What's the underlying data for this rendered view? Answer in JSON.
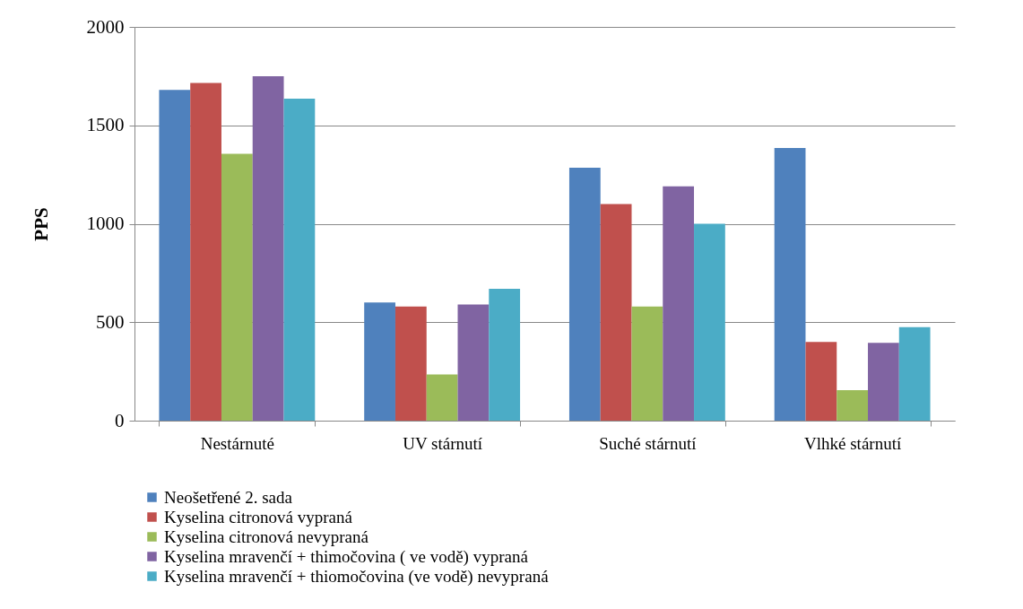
{
  "chart_data": {
    "type": "bar",
    "ylabel": "PPS",
    "categories": [
      "Nestárnuté",
      "UV stárnutí",
      "Suché stárnutí",
      "Vlhké stárnutí"
    ],
    "series": [
      {
        "name": "Neošetřené 2. sada",
        "color": "#4f81bd",
        "values": [
          1680,
          600,
          1285,
          1385
        ]
      },
      {
        "name": "Kyselina citronová vypraná",
        "color": "#c0504d",
        "values": [
          1715,
          580,
          1100,
          400
        ]
      },
      {
        "name": "Kyselina citronová nevypraná",
        "color": "#9bbb59",
        "values": [
          1355,
          235,
          580,
          155
        ]
      },
      {
        "name": "Kyselina mravenčí + thimočovina ( ve vodě) vypraná",
        "color": "#8064a2",
        "values": [
          1750,
          590,
          1190,
          395
        ]
      },
      {
        "name": "Kyselina mravenčí + thiomočovina (ve vodě) nevypraná",
        "color": "#4bacc6",
        "values": [
          1635,
          670,
          1000,
          475
        ]
      }
    ],
    "ylim": [
      0,
      2000
    ],
    "yticks": [
      0,
      500,
      1000,
      1500,
      2000
    ],
    "grid": "y",
    "legend": "bottom"
  }
}
